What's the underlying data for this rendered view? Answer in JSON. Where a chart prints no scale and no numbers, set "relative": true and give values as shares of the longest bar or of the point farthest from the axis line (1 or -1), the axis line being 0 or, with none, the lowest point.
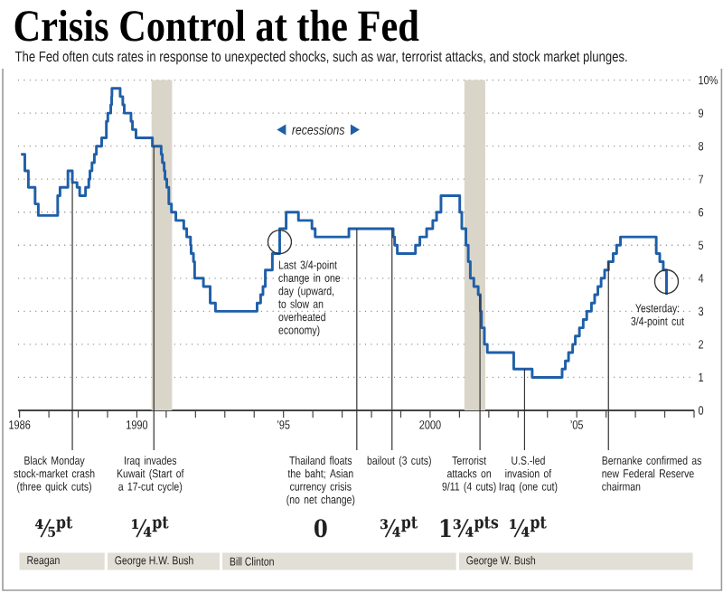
{
  "chart_data": [
    {
      "type": "step",
      "title": "Crisis Control at the Fed",
      "subtitle": "The Fed often cuts rates in response to unexpected shocks, such as war, terrorist attacks, and stock market plunges.",
      "x": [
        1986.05,
        1986.18,
        1986.3,
        1986.53,
        1986.64,
        1987.3,
        1987.38,
        1987.65,
        1987.8,
        1987.96,
        1988.05,
        1988.25,
        1988.36,
        1988.4,
        1988.47,
        1988.55,
        1988.62,
        1988.8,
        1988.96,
        1989.01,
        1989.11,
        1989.14,
        1989.15,
        1989.43,
        1989.52,
        1989.57,
        1989.8,
        1989.85,
        1989.97,
        1990.53,
        1990.83,
        1990.87,
        1990.93,
        1990.96,
        1991.02,
        1991.09,
        1991.18,
        1991.33,
        1991.6,
        1991.7,
        1991.83,
        1991.85,
        1991.93,
        1991.97,
        1992.27,
        1992.5,
        1992.68,
        1994.1,
        1994.22,
        1994.3,
        1994.38,
        1994.62,
        1994.87,
        1995.09,
        1995.51,
        1995.97,
        1996.08,
        1997.23,
        1998.74,
        1998.79,
        1998.88,
        1999.5,
        1999.65,
        1999.88,
        2000.09,
        2000.22,
        2000.37,
        2001.01,
        2001.08,
        2001.22,
        2001.3,
        2001.37,
        2001.49,
        2001.64,
        2001.71,
        2001.75,
        2001.85,
        2001.95,
        2002.85,
        2003.48,
        2004.5,
        2004.61,
        2004.72,
        2004.86,
        2004.95,
        2005.09,
        2005.22,
        2005.34,
        2005.5,
        2005.61,
        2005.72,
        2005.83,
        2005.95,
        2006.08,
        2006.24,
        2006.36,
        2006.49,
        2007.71,
        2007.83,
        2007.95,
        2008.06
      ],
      "values": [
        7.75,
        7.25,
        6.75,
        6.25,
        5.9,
        6.5,
        6.75,
        7.25,
        6.9,
        6.75,
        6.5,
        6.75,
        7.0,
        7.25,
        7.5,
        7.75,
        8.0,
        8.25,
        8.75,
        9.0,
        9.25,
        9.5,
        9.75,
        9.5,
        9.25,
        9.0,
        8.75,
        8.5,
        8.25,
        8.0,
        7.75,
        7.5,
        7.25,
        7.0,
        6.75,
        6.25,
        6.0,
        5.75,
        5.5,
        5.25,
        5.0,
        4.75,
        4.5,
        4.0,
        3.75,
        3.25,
        3.0,
        3.25,
        3.5,
        3.75,
        4.25,
        4.75,
        5.5,
        6.0,
        5.75,
        5.5,
        5.25,
        5.5,
        5.25,
        5.0,
        4.75,
        5.0,
        5.25,
        5.5,
        5.75,
        6.0,
        6.5,
        6.0,
        5.5,
        5.0,
        4.5,
        4.0,
        3.75,
        3.5,
        3.0,
        2.5,
        2.0,
        1.75,
        1.25,
        1.0,
        1.25,
        1.5,
        1.75,
        2.0,
        2.25,
        2.5,
        2.75,
        3.0,
        3.25,
        3.5,
        3.75,
        4.0,
        4.25,
        4.5,
        4.75,
        5.0,
        5.25,
        4.75,
        4.5,
        4.25,
        3.5
      ],
      "color": "#1f5fa8",
      "xlim": [
        1985.95,
        2009
      ],
      "ylim": [
        0,
        10
      ],
      "xticks": [
        1986,
        {
          "value": 1987,
          "label": null
        },
        {
          "value": 1988,
          "label": null
        },
        {
          "value": 1989,
          "label": null
        },
        1990,
        {
          "value": 1991,
          "label": null
        },
        {
          "value": 1992,
          "label": null
        },
        {
          "value": 1993,
          "label": null
        },
        {
          "value": 1994,
          "label": null
        },
        {
          "value": 1995,
          "label": "’95"
        },
        {
          "value": 1996,
          "label": null
        },
        {
          "value": 1997,
          "label": null
        },
        {
          "value": 1998,
          "label": null
        },
        {
          "value": 1999,
          "label": null
        },
        2000,
        {
          "value": 2001,
          "label": null
        },
        {
          "value": 2002,
          "label": null
        },
        {
          "value": 2003,
          "label": null
        },
        {
          "value": 2004,
          "label": null
        },
        {
          "value": 2005,
          "label": "’05"
        },
        {
          "value": 2006,
          "label": null
        },
        {
          "value": 2007,
          "label": null
        },
        {
          "value": 2008,
          "label": null
        },
        {
          "value": 2009,
          "label": null
        }
      ],
      "yticks": [
        0,
        1,
        2,
        3,
        4,
        5,
        6,
        7,
        8,
        9,
        {
          "value": 10,
          "label": "10%"
        }
      ],
      "grid": "y",
      "bands": [
        {
          "axis": "x",
          "from": 1990.5,
          "to": 1991.2,
          "color": "#d9d5c9"
        },
        {
          "axis": "x",
          "from": 2001.17,
          "to": 2001.88,
          "color": "#d9d5c9"
        }
      ],
      "ref_lines": [
        {
          "axis": "x",
          "value": 1987.8,
          "label": "Black Monday stock-market crash (three quick cuts)",
          "color": "#333333"
        },
        {
          "axis": "x",
          "value": 1990.58,
          "label": "Iraq invades Kuwait (Start of a 17-cut cycle)",
          "color": "#333333"
        },
        {
          "axis": "x",
          "value": 1997.5,
          "label": "Thailand floats the baht; Asian currency crisis (no net change)",
          "color": "#333333"
        },
        {
          "axis": "x",
          "value": 1998.7,
          "label": "bailout (3 cuts)",
          "color": "#333333"
        },
        {
          "axis": "x",
          "value": 2001.7,
          "label": "Terrorist attacks on 9/11 (4 cuts)",
          "color": "#333333"
        },
        {
          "axis": "x",
          "value": 2003.22,
          "label": "U.S.-led invasion of Iraq (one cut)",
          "color": "#333333"
        },
        {
          "axis": "x",
          "value": 2006.08,
          "label": "Bernanke confirmed as new Federal Reserve chairman",
          "color": "#333333"
        }
      ],
      "annotations": [
        "recessions",
        {
          "text": "Last 3/4-point change in one day (upward, to slow an overheated economy)",
          "x": 1994.87,
          "y": 5.1
        },
        {
          "text": "Yesterday: 3/4-point cut",
          "x": 2008.06,
          "y": 3.9
        },
        "⅘$^{pt}$",
        "¼$^{pt}$",
        "0",
        "¾$^{pt}$",
        "1¾$^{pts}$",
        "¼$^{pt}$"
      ]
    },
    {
      "type": "bar",
      "orientation": "horizontal",
      "stacked": true,
      "relative": true,
      "categories": [
        null
      ],
      "series": [
        {
          "name": "Reagan",
          "color": "#e2dfd6",
          "values": [
            0.13
          ]
        },
        {
          "name": "George H.W. Bush",
          "color": "#e2dfd6",
          "values": [
            0.17
          ]
        },
        {
          "name": "Bill Clinton",
          "color": "#e2dfd6",
          "values": [
            0.35
          ]
        },
        {
          "name": "George W. Bush",
          "color": "#e2dfd6",
          "values": [
            0.35
          ]
        }
      ]
    }
  ]
}
